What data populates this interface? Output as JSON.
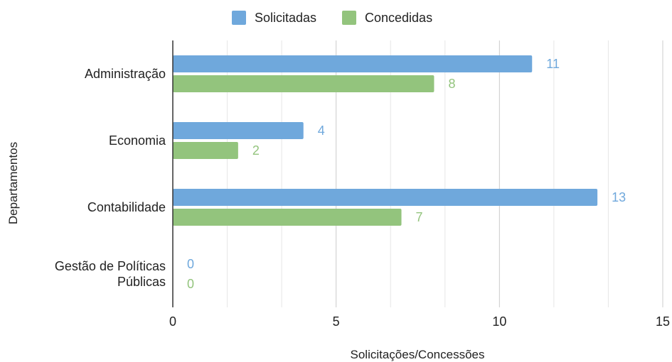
{
  "chart_data": {
    "type": "bar",
    "orientation": "horizontal",
    "categories": [
      "Administração",
      "Economia",
      "Contabilidade",
      "Gestão de Políticas Públicas"
    ],
    "series": [
      {
        "name": "Solicitadas",
        "color": "#6fa8dc",
        "values": [
          11,
          4,
          13,
          0
        ]
      },
      {
        "name": "Concedidas",
        "color": "#93c47d",
        "values": [
          8,
          2,
          7,
          0
        ]
      }
    ],
    "xlabel": "Solicitações/Concessões",
    "ylabel": "Departamentos",
    "xlim": [
      0,
      15
    ],
    "xticks": [
      0,
      5,
      10,
      15
    ],
    "grid": true,
    "legend_position": "top"
  }
}
